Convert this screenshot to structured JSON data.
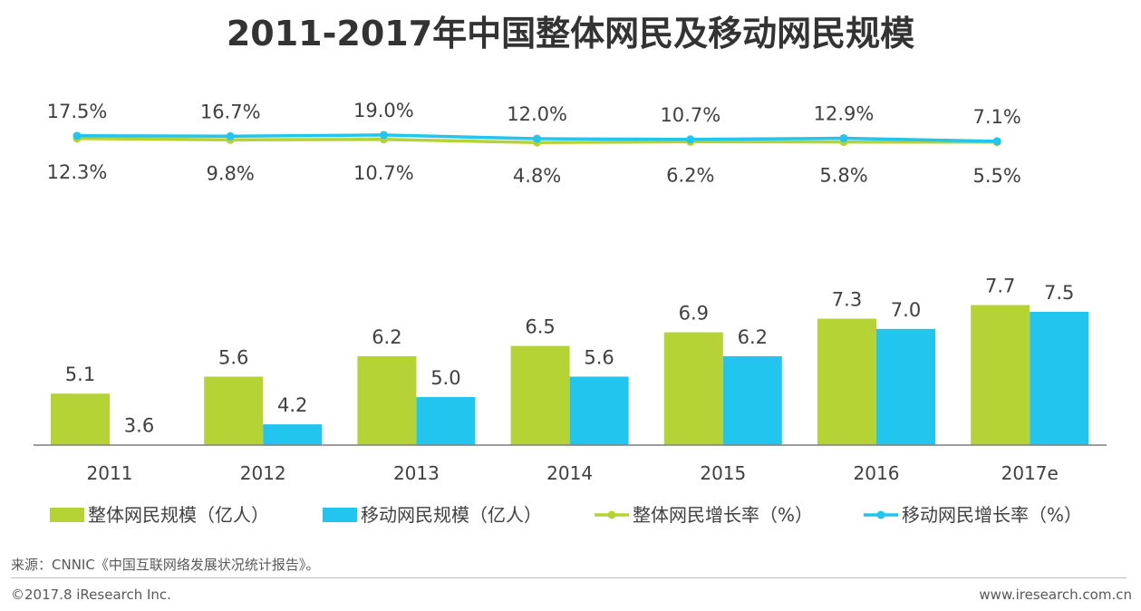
{
  "title": "2011-2017年中国整体网民及移动网民规模",
  "colors": {
    "total": "#b5d334",
    "mobile": "#22c5ee",
    "axis": "#7f7f7f",
    "text": "#404040"
  },
  "chart_data": {
    "type": "bar+line",
    "title": "2011-2017年中国整体网民及移动网民规模",
    "categories": [
      "2011",
      "2012",
      "2013",
      "2014",
      "2015",
      "2016",
      "2017e"
    ],
    "bar_series": [
      {
        "name": "整体网民规模（亿人）",
        "labels": [
          "5.1",
          "5.6",
          "6.2",
          "6.5",
          "6.9",
          "7.3",
          "7.7"
        ],
        "values": [
          5.1,
          5.6,
          6.2,
          6.5,
          6.9,
          7.3,
          7.7
        ]
      },
      {
        "name": "移动网民规模（亿人）",
        "labels": [
          "3.6",
          "4.2",
          "5.0",
          "5.6",
          "6.2",
          "7.0",
          "7.5"
        ],
        "values": [
          3.6,
          4.2,
          5.0,
          5.6,
          6.2,
          7.0,
          7.5
        ]
      }
    ],
    "line_series": [
      {
        "name": "整体网民增长率（%）",
        "labels": [
          "12.3%",
          "9.8%",
          "10.7%",
          "4.8%",
          "6.2%",
          "5.8%",
          "5.5%"
        ],
        "values": [
          12.3,
          9.8,
          10.7,
          4.8,
          6.2,
          5.8,
          5.5
        ]
      },
      {
        "name": "移动网民增长率（%）",
        "labels": [
          "17.5%",
          "16.7%",
          "19.0%",
          "12.0%",
          "10.7%",
          "12.9%",
          "7.1%"
        ],
        "values": [
          17.5,
          16.7,
          19.0,
          12.0,
          10.7,
          12.9,
          7.1
        ]
      }
    ],
    "bar_ylim": [
      0,
      8
    ],
    "line_ylim": [
      0,
      200
    ],
    "legend_position": "bottom"
  },
  "footer": {
    "source": "来源：CNNIC《中国互联网络发展状况统计报告》。",
    "copyright": "©2017.8 iResearch Inc.",
    "website": "www.iresearch.com.cn"
  }
}
